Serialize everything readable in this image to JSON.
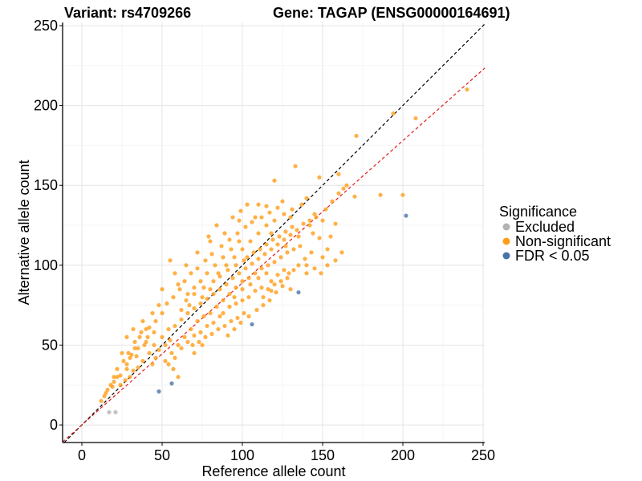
{
  "chart_data": {
    "type": "scatter",
    "title_left": "Variant: rs4709266",
    "title_right": "Gene: TAGAP (ENSG00000164691)",
    "xlabel": "Reference allele count",
    "ylabel": "Alternative allele count",
    "xlim": [
      -12,
      251
    ],
    "ylim": [
      -11,
      252
    ],
    "xticks": [
      0,
      50,
      100,
      150,
      200,
      250
    ],
    "yticks": [
      0,
      50,
      100,
      150,
      200,
      250
    ],
    "grid": true,
    "reference_lines": [
      {
        "name": "identity",
        "slope": 1.0,
        "intercept": 0,
        "color": "#000000",
        "style": "dashed"
      },
      {
        "name": "fit",
        "slope": 0.89,
        "intercept": 0,
        "color": "#e41a1c",
        "style": "dashed"
      }
    ],
    "legend": {
      "title": "Significance",
      "placement": "right",
      "entries": [
        {
          "label": "Excluded",
          "color": "#b3b3b3"
        },
        {
          "label": "Non-significant",
          "color": "#ff9e19"
        },
        {
          "label": "FDR < 0.05",
          "color": "#4a74a8"
        }
      ]
    },
    "series": [
      {
        "name": "Excluded",
        "color": "#b3b3b3",
        "points": [
          [
            17,
            8
          ],
          [
            21,
            8
          ]
        ]
      },
      {
        "name": "FDR < 0.05",
        "color": "#4a74a8",
        "points": [
          [
            48,
            21
          ],
          [
            56,
            26
          ],
          [
            106,
            63
          ],
          [
            135,
            83
          ],
          [
            202,
            131
          ]
        ]
      },
      {
        "name": "Non-significant",
        "color": "#ff9e19",
        "points": [
          [
            240,
            210
          ],
          [
            194,
            195
          ],
          [
            208,
            192
          ],
          [
            171,
            181
          ],
          [
            186,
            144
          ],
          [
            200,
            144
          ],
          [
            170,
            143
          ],
          [
            163,
            148
          ],
          [
            160,
            157
          ],
          [
            133,
            162
          ],
          [
            148,
            155
          ],
          [
            120,
            153
          ],
          [
            125,
            140
          ],
          [
            110,
            138
          ],
          [
            127,
            112
          ],
          [
            140,
            100
          ],
          [
            149,
            95
          ],
          [
            155,
            118
          ],
          [
            142,
            125
          ],
          [
            150,
            105
          ],
          [
            153,
            110
          ],
          [
            130,
            130
          ],
          [
            118,
            120
          ],
          [
            135,
            118
          ],
          [
            146,
            130
          ],
          [
            140,
            142
          ],
          [
            108,
            130
          ],
          [
            98,
            128
          ],
          [
            89,
            120
          ],
          [
            80,
            115
          ],
          [
            72,
            108
          ],
          [
            65,
            100
          ],
          [
            58,
            95
          ],
          [
            55,
            103
          ],
          [
            60,
            88
          ],
          [
            50,
            85
          ],
          [
            48,
            75
          ],
          [
            44,
            70
          ],
          [
            38,
            65
          ],
          [
            32,
            60
          ],
          [
            28,
            55
          ],
          [
            25,
            45
          ],
          [
            22,
            35
          ],
          [
            20,
            30
          ],
          [
            18,
            25
          ],
          [
            15,
            20
          ],
          [
            12,
            15
          ],
          [
            14,
            18
          ],
          [
            16,
            22
          ],
          [
            20,
            27
          ],
          [
            24,
            31
          ],
          [
            28,
            38
          ],
          [
            30,
            42
          ],
          [
            35,
            48
          ],
          [
            40,
            52
          ],
          [
            42,
            45
          ],
          [
            45,
            50
          ],
          [
            50,
            55
          ],
          [
            54,
            60
          ],
          [
            58,
            62
          ],
          [
            62,
            66
          ],
          [
            66,
            70
          ],
          [
            70,
            73
          ],
          [
            74,
            76
          ],
          [
            78,
            79
          ],
          [
            82,
            82
          ],
          [
            86,
            85
          ],
          [
            90,
            88
          ],
          [
            94,
            92
          ],
          [
            98,
            95
          ],
          [
            102,
            98
          ],
          [
            106,
            101
          ],
          [
            110,
            104
          ],
          [
            114,
            107
          ],
          [
            118,
            110
          ],
          [
            122,
            113
          ],
          [
            126,
            116
          ],
          [
            130,
            119
          ],
          [
            134,
            122
          ],
          [
            52,
            40
          ],
          [
            56,
            45
          ],
          [
            60,
            50
          ],
          [
            64,
            55
          ],
          [
            68,
            60
          ],
          [
            72,
            65
          ],
          [
            76,
            68
          ],
          [
            80,
            70
          ],
          [
            84,
            74
          ],
          [
            88,
            78
          ],
          [
            92,
            82
          ],
          [
            96,
            86
          ],
          [
            100,
            90
          ],
          [
            104,
            92
          ],
          [
            108,
            95
          ],
          [
            112,
            98
          ],
          [
            116,
            100
          ],
          [
            120,
            102
          ],
          [
            124,
            105
          ],
          [
            128,
            108
          ],
          [
            132,
            110
          ],
          [
            136,
            112
          ],
          [
            85,
            95
          ],
          [
            90,
            100
          ],
          [
            95,
            105
          ],
          [
            100,
            110
          ],
          [
            105,
            115
          ],
          [
            95,
            80
          ],
          [
            100,
            85
          ],
          [
            105,
            88
          ],
          [
            110,
            92
          ],
          [
            115,
            95
          ],
          [
            80,
            85
          ],
          [
            75,
            80
          ],
          [
            70,
            82
          ],
          [
            65,
            78
          ],
          [
            62,
            72
          ],
          [
            67,
            75
          ],
          [
            88,
            70
          ],
          [
            92,
            74
          ],
          [
            96,
            76
          ],
          [
            100,
            78
          ],
          [
            104,
            80
          ],
          [
            108,
            84
          ],
          [
            112,
            86
          ],
          [
            118,
            90
          ],
          [
            122,
            94
          ],
          [
            126,
            97
          ],
          [
            62,
            48
          ],
          [
            66,
            52
          ],
          [
            70,
            56
          ],
          [
            74,
            58
          ],
          [
            78,
            62
          ],
          [
            82,
            64
          ],
          [
            86,
            68
          ],
          [
            38,
            40
          ],
          [
            35,
            36
          ],
          [
            32,
            34
          ],
          [
            30,
            30
          ],
          [
            27,
            28
          ],
          [
            24,
            25
          ],
          [
            44,
            38
          ],
          [
            46,
            42
          ],
          [
            48,
            47
          ],
          [
            52,
            50
          ],
          [
            55,
            53
          ],
          [
            45,
            58
          ],
          [
            40,
            60
          ],
          [
            36,
            55
          ],
          [
            33,
            52
          ],
          [
            29,
            45
          ],
          [
            26,
            40
          ],
          [
            22,
            30
          ],
          [
            19,
            24
          ],
          [
            110,
            120
          ],
          [
            115,
            125
          ],
          [
            120,
            128
          ],
          [
            98,
            115
          ],
          [
            93,
            110
          ],
          [
            88,
            105
          ],
          [
            83,
            100
          ],
          [
            78,
            95
          ],
          [
            74,
            90
          ],
          [
            70,
            86
          ],
          [
            66,
            82
          ],
          [
            103,
            105
          ],
          [
            107,
            108
          ],
          [
            111,
            110
          ],
          [
            115,
            113
          ],
          [
            119,
            116
          ],
          [
            123,
            118
          ],
          [
            127,
            121
          ],
          [
            131,
            124
          ],
          [
            138,
            126
          ],
          [
            142,
            128
          ],
          [
            145,
            132
          ],
          [
            150,
            128
          ],
          [
            158,
            126
          ],
          [
            152,
            135
          ],
          [
            156,
            140
          ],
          [
            160,
            145
          ],
          [
            165,
            150
          ],
          [
            144,
            120
          ],
          [
            148,
            117
          ],
          [
            116,
            85
          ],
          [
            120,
            88
          ],
          [
            124,
            90
          ],
          [
            128,
            92
          ],
          [
            101,
            70
          ],
          [
            97,
            67
          ],
          [
            93,
            65
          ],
          [
            89,
            62
          ],
          [
            85,
            60
          ],
          [
            81,
            57
          ],
          [
            77,
            55
          ],
          [
            73,
            52
          ],
          [
            69,
            50
          ],
          [
            58,
            42
          ],
          [
            54,
            38
          ],
          [
            60,
            30
          ],
          [
            57,
            35
          ],
          [
            70,
            45
          ],
          [
            75,
            50
          ],
          [
            113,
            80
          ],
          [
            118,
            84
          ],
          [
            76,
            86
          ],
          [
            82,
            90
          ],
          [
            86,
            93
          ],
          [
            91,
            97
          ],
          [
            96,
            100
          ],
          [
            101,
            103
          ],
          [
            87,
            112
          ],
          [
            92,
            116
          ],
          [
            97,
            120
          ],
          [
            102,
            124
          ],
          [
            106,
            127
          ],
          [
            112,
            130
          ],
          [
            117,
            133
          ],
          [
            122,
            136
          ],
          [
            103,
            138
          ],
          [
            99,
            134
          ],
          [
            94,
            130
          ],
          [
            84,
            125
          ],
          [
            79,
            118
          ],
          [
            115,
            137
          ],
          [
            126,
            132
          ],
          [
            131,
            135
          ],
          [
            137,
            138
          ],
          [
            143,
            108
          ],
          [
            139,
            104
          ],
          [
            135,
            100
          ],
          [
            132,
            97
          ],
          [
            129,
            95
          ],
          [
            125,
            87
          ],
          [
            121,
            83
          ],
          [
            117,
            78
          ],
          [
            113,
            75
          ],
          [
            109,
            72
          ],
          [
            104,
            68
          ],
          [
            99,
            64
          ],
          [
            95,
            60
          ],
          [
            91,
            56
          ],
          [
            130,
            85
          ],
          [
            140,
            95
          ],
          [
            145,
            98
          ],
          [
            153,
            100
          ],
          [
            158,
            103
          ],
          [
            162,
            108
          ],
          [
            64,
            90
          ],
          [
            61,
            85
          ],
          [
            57,
            80
          ],
          [
            53,
            76
          ],
          [
            50,
            70
          ],
          [
            46,
            65
          ],
          [
            42,
            61
          ],
          [
            37,
            58
          ],
          [
            33,
            48
          ],
          [
            31,
            44
          ],
          [
            68,
            95
          ],
          [
            72,
            98
          ],
          [
            77,
            103
          ],
          [
            81,
            107
          ],
          [
            41,
            55
          ],
          [
            39,
            50
          ],
          [
            34,
            43
          ],
          [
            28,
            35
          ]
        ]
      }
    ]
  }
}
